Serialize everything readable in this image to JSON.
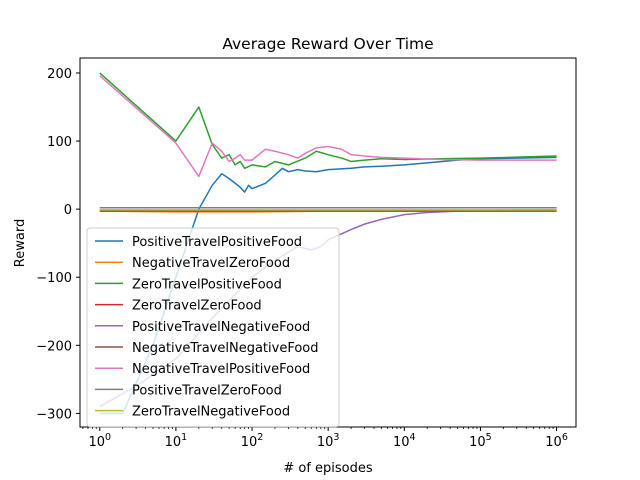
{
  "chart_data": {
    "type": "line",
    "title": "Average Reward Over Time",
    "xlabel": "# of episodes",
    "ylabel": "Reward",
    "xscale": "log",
    "xlim": [
      0.55,
      1800000
    ],
    "ylim": [
      -320,
      222
    ],
    "xticks": [
      {
        "value": 1,
        "base": "10",
        "exp": "0"
      },
      {
        "value": 10,
        "base": "10",
        "exp": "1"
      },
      {
        "value": 100,
        "base": "10",
        "exp": "2"
      },
      {
        "value": 1000,
        "base": "10",
        "exp": "3"
      },
      {
        "value": 10000,
        "base": "10",
        "exp": "4"
      },
      {
        "value": 100000,
        "base": "10",
        "exp": "5"
      },
      {
        "value": 1000000,
        "base": "10",
        "exp": "6"
      }
    ],
    "yticks": [
      {
        "value": 200,
        "label": "200"
      },
      {
        "value": 100,
        "label": "100"
      },
      {
        "value": 0,
        "label": "0"
      },
      {
        "value": -100,
        "label": "−100"
      },
      {
        "value": -200,
        "label": "−200"
      },
      {
        "value": -300,
        "label": "−300"
      }
    ],
    "grid": false,
    "legend_position": "lower-left",
    "series": [
      {
        "name": "PositiveTravelPositiveFood",
        "color": "#1f77b4",
        "points": [
          [
            1,
            -300
          ],
          [
            2,
            -300
          ],
          [
            5,
            -200
          ],
          [
            10,
            -100
          ],
          [
            20,
            0
          ],
          [
            30,
            35
          ],
          [
            40,
            52
          ],
          [
            50,
            45
          ],
          [
            60,
            38
          ],
          [
            70,
            32
          ],
          [
            80,
            25
          ],
          [
            90,
            35
          ],
          [
            100,
            30
          ],
          [
            150,
            38
          ],
          [
            200,
            50
          ],
          [
            250,
            60
          ],
          [
            300,
            55
          ],
          [
            400,
            58
          ],
          [
            500,
            56
          ],
          [
            700,
            55
          ],
          [
            1000,
            58
          ],
          [
            2000,
            60
          ],
          [
            3000,
            62
          ],
          [
            5000,
            63
          ],
          [
            10000,
            65
          ],
          [
            20000,
            68
          ],
          [
            50000,
            72
          ],
          [
            100000,
            74
          ],
          [
            300000,
            75
          ],
          [
            1000000,
            76
          ]
        ]
      },
      {
        "name": "NegativeTravelZeroFood",
        "color": "#ff7f0e",
        "points": [
          [
            1,
            -3
          ],
          [
            10,
            -4
          ],
          [
            100,
            -4
          ],
          [
            1000,
            -3
          ],
          [
            10000,
            -3
          ],
          [
            100000,
            -3
          ],
          [
            1000000,
            -3
          ]
        ]
      },
      {
        "name": "ZeroTravelPositiveFood",
        "color": "#2ca02c",
        "points": [
          [
            1,
            200
          ],
          [
            10,
            100
          ],
          [
            20,
            150
          ],
          [
            30,
            95
          ],
          [
            40,
            75
          ],
          [
            50,
            80
          ],
          [
            60,
            65
          ],
          [
            70,
            70
          ],
          [
            80,
            60
          ],
          [
            100,
            65
          ],
          [
            150,
            62
          ],
          [
            200,
            70
          ],
          [
            300,
            65
          ],
          [
            500,
            75
          ],
          [
            700,
            85
          ],
          [
            1000,
            80
          ],
          [
            1500,
            75
          ],
          [
            2000,
            70
          ],
          [
            3000,
            72
          ],
          [
            5000,
            74
          ],
          [
            10000,
            73
          ],
          [
            30000,
            74
          ],
          [
            100000,
            75
          ],
          [
            1000000,
            78
          ]
        ]
      },
      {
        "name": "ZeroTravelZeroFood",
        "color": "#d62728",
        "points": [
          [
            1,
            -2
          ],
          [
            10,
            -2
          ],
          [
            100,
            -2
          ],
          [
            1000,
            -2
          ],
          [
            10000,
            -2
          ],
          [
            100000,
            -2
          ],
          [
            1000000,
            -2
          ]
        ]
      },
      {
        "name": "PositiveTravelNegativeFood",
        "color": "#9467bd",
        "points": [
          [
            1,
            -290
          ],
          [
            3,
            -260
          ],
          [
            10,
            -220
          ],
          [
            30,
            -160
          ],
          [
            100,
            -100
          ],
          [
            200,
            -75
          ],
          [
            400,
            -55
          ],
          [
            600,
            -60
          ],
          [
            800,
            -55
          ],
          [
            1000,
            -45
          ],
          [
            2000,
            -30
          ],
          [
            3000,
            -22
          ],
          [
            5000,
            -15
          ],
          [
            10000,
            -8
          ],
          [
            20000,
            -5
          ],
          [
            50000,
            -3
          ],
          [
            100000,
            -2
          ],
          [
            300000,
            -1
          ],
          [
            1000000,
            -1
          ]
        ]
      },
      {
        "name": "NegativeTravelNegativeFood",
        "color": "#8c564b",
        "points": [
          [
            1,
            -3
          ],
          [
            10,
            -3
          ],
          [
            100,
            -3
          ],
          [
            1000,
            -3
          ],
          [
            10000,
            -3
          ],
          [
            100000,
            -3
          ],
          [
            1000000,
            -3
          ]
        ]
      },
      {
        "name": "NegativeTravelPositiveFood",
        "color": "#e377c2",
        "points": [
          [
            1,
            196
          ],
          [
            10,
            97
          ],
          [
            20,
            48
          ],
          [
            30,
            97
          ],
          [
            40,
            85
          ],
          [
            50,
            70
          ],
          [
            60,
            75
          ],
          [
            70,
            80
          ],
          [
            80,
            72
          ],
          [
            100,
            72
          ],
          [
            150,
            88
          ],
          [
            200,
            85
          ],
          [
            300,
            80
          ],
          [
            400,
            75
          ],
          [
            500,
            82
          ],
          [
            700,
            90
          ],
          [
            1000,
            92
          ],
          [
            1500,
            88
          ],
          [
            2000,
            80
          ],
          [
            3000,
            78
          ],
          [
            5000,
            76
          ],
          [
            10000,
            75
          ],
          [
            30000,
            73
          ],
          [
            100000,
            72
          ],
          [
            1000000,
            72
          ]
        ]
      },
      {
        "name": "PositiveTravelZeroFood",
        "color": "#7f7f7f",
        "points": [
          [
            1,
            2
          ],
          [
            10,
            2
          ],
          [
            100,
            2
          ],
          [
            1000,
            2
          ],
          [
            10000,
            2
          ],
          [
            100000,
            2
          ],
          [
            1000000,
            2
          ]
        ]
      },
      {
        "name": "ZeroTravelNegativeFood",
        "color": "#bcbd22",
        "points": [
          [
            1,
            -1
          ],
          [
            10,
            -1
          ],
          [
            100,
            -1
          ],
          [
            1000,
            -1
          ],
          [
            10000,
            -1
          ],
          [
            100000,
            -1
          ],
          [
            1000000,
            -1
          ]
        ]
      }
    ]
  }
}
